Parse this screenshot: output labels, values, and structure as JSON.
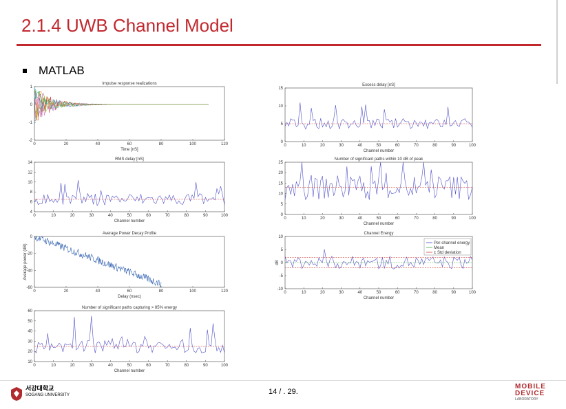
{
  "slide": {
    "title": "2.1.4 UWB Channel Model",
    "bullet": "MATLAB",
    "page_number": "14 / . 29.",
    "accent_color": "#c0282e"
  },
  "logos": {
    "left_text_line1": "서강대학교",
    "left_text_line2": "SOGANG UNIVERSITY",
    "right_text_line1": "MOBILE",
    "right_text_line2": "DEVICE",
    "right_text_line3": "LABORATORY"
  },
  "chart_data": [
    {
      "type": "line",
      "title": "Impulse response realizations",
      "xlabel": "Time [nS]",
      "ylabel": "",
      "xlim": [
        0,
        120
      ],
      "ylim": [
        -2,
        1
      ],
      "xticks": [
        "0",
        "20",
        "40",
        "60",
        "80",
        "100",
        "120"
      ],
      "yticks": [
        "1",
        "0",
        "-1",
        "-2"
      ],
      "description_series": "many overlapping colored realizations decaying toward 0 by ~60 nS"
    },
    {
      "type": "line",
      "title": "Excess delay [nS]",
      "xlabel": "Channel number",
      "xlim": [
        0,
        100
      ],
      "ylim": [
        0,
        15
      ],
      "xticks": [
        "0",
        "10",
        "20",
        "30",
        "40",
        "50",
        "60",
        "70",
        "80",
        "90",
        "100"
      ],
      "yticks": [
        "15",
        "10",
        "5",
        "0"
      ],
      "mean": 5
    },
    {
      "type": "line",
      "title": "RMS delay [nS]",
      "xlabel": "Channel number",
      "xlim": [
        0,
        100
      ],
      "ylim": [
        4,
        14
      ],
      "xticks": [
        "0",
        "10",
        "20",
        "30",
        "40",
        "50",
        "60",
        "70",
        "80",
        "90",
        "100"
      ],
      "yticks": [
        "14",
        "12",
        "10",
        "8",
        "6",
        "4"
      ],
      "mean": 6.5
    },
    {
      "type": "line",
      "title": "Number of significant paths within 10 dB of peak",
      "xlabel": "Channel number",
      "xlim": [
        0,
        100
      ],
      "ylim": [
        0,
        25
      ],
      "xticks": [
        "0",
        "10",
        "20",
        "30",
        "40",
        "50",
        "60",
        "70",
        "80",
        "90",
        "100"
      ],
      "yticks": [
        "25",
        "20",
        "15",
        "10",
        "5",
        "0"
      ],
      "mean": 13
    },
    {
      "type": "line",
      "title": "Average Power Decay Profile",
      "xlabel": "Delay (nsec)",
      "ylabel": "Average power (dB)",
      "xlim": [
        0,
        120
      ],
      "ylim": [
        -60,
        0
      ],
      "xticks": [
        "0",
        "20",
        "40",
        "60",
        "80",
        "100",
        "120"
      ],
      "yticks": [
        "0",
        "-20",
        "-40",
        "-60"
      ]
    },
    {
      "type": "line",
      "title": "Channel Energy",
      "xlabel": "Channel number",
      "ylabel": "dB",
      "xlim": [
        0,
        100
      ],
      "ylim": [
        -10,
        10
      ],
      "xticks": [
        "0",
        "10",
        "20",
        "30",
        "40",
        "50",
        "60",
        "70",
        "80",
        "90",
        "100"
      ],
      "yticks": [
        "10",
        "5",
        "0",
        "-5",
        "-10"
      ],
      "legend": [
        "Per-channel energy",
        "Mean",
        "± Std deviation"
      ],
      "legend_position": "top-right"
    },
    {
      "type": "line",
      "title": "Number of significant paths capturing > 85% energy",
      "xlabel": "Channel number",
      "xlim": [
        0,
        100
      ],
      "ylim": [
        10,
        60
      ],
      "xticks": [
        "0",
        "10",
        "20",
        "30",
        "40",
        "50",
        "60",
        "70",
        "80",
        "90",
        "100"
      ],
      "yticks": [
        "60",
        "50",
        "40",
        "30",
        "20",
        "10"
      ],
      "mean": 25
    }
  ]
}
